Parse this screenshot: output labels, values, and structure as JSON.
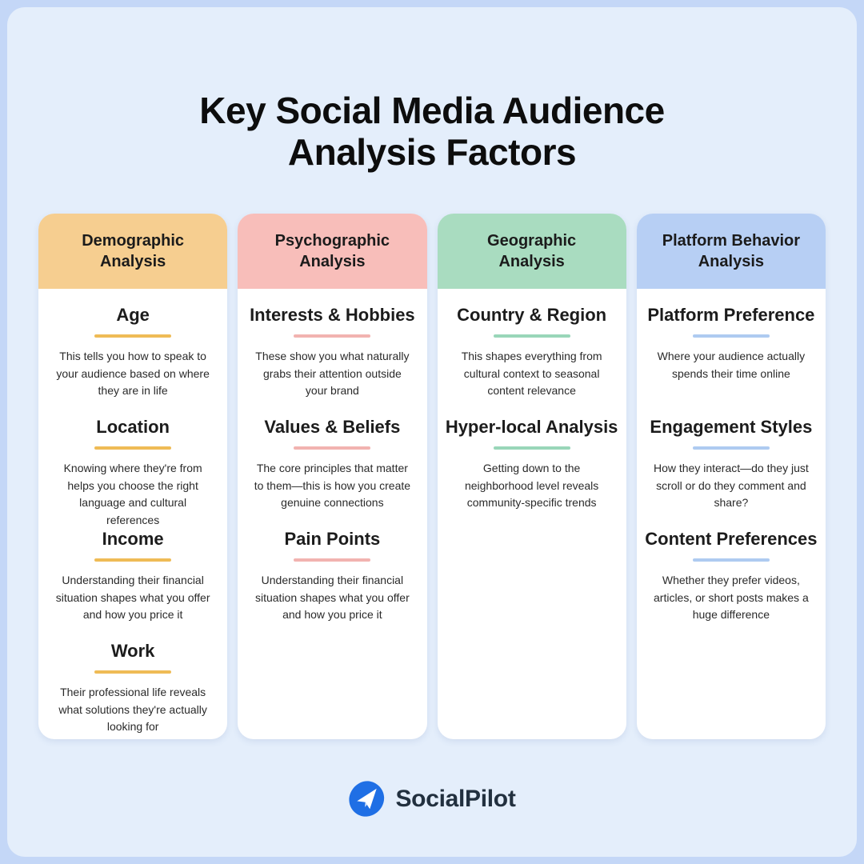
{
  "title": {
    "line1": "Key Social Media Audience",
    "line2": "Analysis Factors"
  },
  "colors": {
    "outer_background": "#c4d7f7",
    "panel_background": "#e4eefb",
    "card_background": "#ffffff",
    "title_text": "#0d0d0d",
    "body_text": "#2a2a2a",
    "brand_text": "#22303f",
    "logo_blue": "#1f6fe5"
  },
  "columns": [
    {
      "header_lines": [
        "Demographic",
        "Analysis"
      ],
      "header_bg": "#f6ce90",
      "accent": "#efbb56",
      "sections": [
        {
          "heading": "Age",
          "body": "This tells you how to speak to your audience based on where they are in life"
        },
        {
          "heading": "Location",
          "body": "Knowing where they're from helps you choose the right language and cultural references"
        },
        {
          "heading": "Income",
          "body": "Understanding their financial situation shapes what you offer and how you price it"
        },
        {
          "heading": "Work",
          "body": "Their professional life reveals what solutions they're actually looking for"
        }
      ]
    },
    {
      "header_lines": [
        "Psychographic",
        "Analysis"
      ],
      "header_bg": "#f8beba",
      "accent": "#f2b3b0",
      "sections": [
        {
          "heading": "Interests & Hobbies",
          "body": "These show you what naturally grabs their attention outside your brand"
        },
        {
          "heading": "Values & Beliefs",
          "body": "The core principles that matter to them—this is how you create genuine connections"
        },
        {
          "heading": "Pain Points",
          "body": "Understanding their financial situation shapes what you offer and how you price it"
        }
      ]
    },
    {
      "header_lines": [
        "Geographic",
        "Analysis"
      ],
      "header_bg": "#a9dcc0",
      "accent": "#99d6b9",
      "sections": [
        {
          "heading": "Country & Region",
          "body": "This shapes everything from cultural context to seasonal content relevance"
        },
        {
          "heading": "Hyper-local Analysis",
          "body": "Getting down to the neighborhood level reveals community-specific trends"
        }
      ]
    },
    {
      "header_lines": [
        "Platform Behavior",
        "Analysis"
      ],
      "header_bg": "#b7cff4",
      "accent": "#aecbf1",
      "sections": [
        {
          "heading": "Platform Preference",
          "body": "Where your audience actually spends their time online"
        },
        {
          "heading": "Engagement Styles",
          "body": "How they interact—do they just scroll or do they comment and share?"
        },
        {
          "heading": "Content Preferences",
          "body": "Whether they prefer videos, articles, or short posts makes a huge difference"
        }
      ]
    }
  ],
  "footer": {
    "brand": "SocialPilot"
  }
}
